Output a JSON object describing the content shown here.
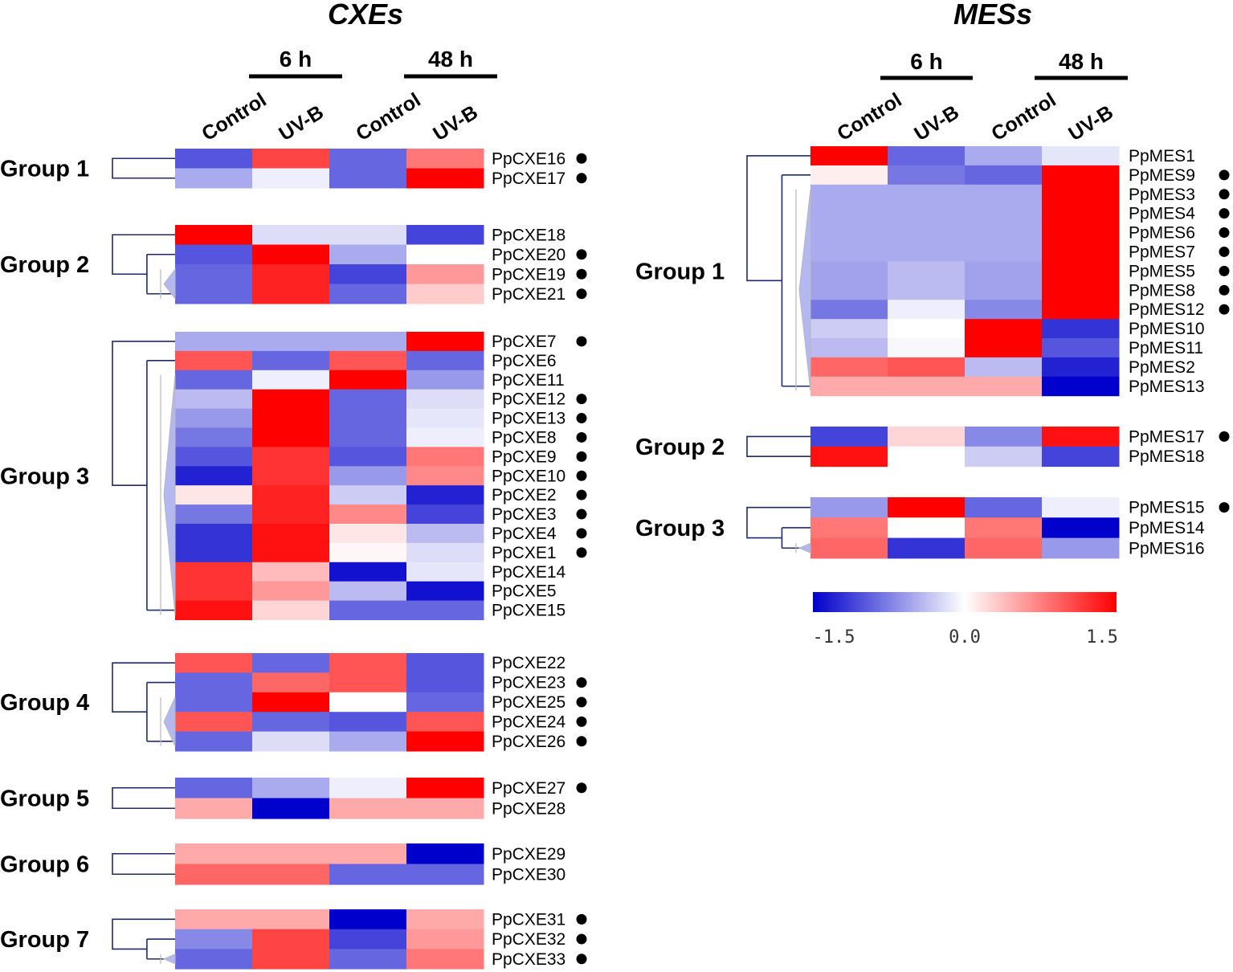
{
  "chart_data": [
    {
      "type": "heatmap",
      "title": "CXEs",
      "time_points": [
        "6 h",
        "48 h"
      ],
      "columns": [
        "Control",
        "UV-B",
        "Control",
        "UV-B"
      ],
      "color_scale": {
        "min": -1.5,
        "mid": 0.0,
        "max": 1.5,
        "low_color": "#0000cc",
        "mid_color": "#ffffff",
        "high_color": "#ff0000"
      },
      "groups": [
        {
          "name": "Group 1",
          "rows": [
            {
              "gene": "PpCXE16",
              "values": [
                -1.0,
                1.1,
                -0.9,
                0.8
              ],
              "marked": true
            },
            {
              "gene": "PpCXE17",
              "values": [
                -0.5,
                -0.1,
                -0.9,
                1.5
              ],
              "marked": true
            }
          ]
        },
        {
          "name": "Group 2",
          "rows": [
            {
              "gene": "PpCXE18",
              "values": [
                1.5,
                -0.2,
                -0.2,
                -1.1
              ],
              "marked": false
            },
            {
              "gene": "PpCXE20",
              "values": [
                -1.0,
                1.5,
                -0.5,
                0.0
              ],
              "marked": true
            },
            {
              "gene": "PpCXE19",
              "values": [
                -0.9,
                1.3,
                -1.1,
                0.6
              ],
              "marked": true
            },
            {
              "gene": "PpCXE21",
              "values": [
                -0.9,
                1.3,
                -0.9,
                0.3
              ],
              "marked": true
            }
          ]
        },
        {
          "name": "Group 3",
          "rows": [
            {
              "gene": "PpCXE7",
              "values": [
                -0.5,
                -0.5,
                -0.5,
                1.5
              ],
              "marked": true
            },
            {
              "gene": "PpCXE6",
              "values": [
                1.0,
                -0.9,
                1.0,
                -0.9
              ],
              "marked": false
            },
            {
              "gene": "PpCXE11",
              "values": [
                -0.9,
                -0.1,
                1.5,
                -0.6
              ],
              "marked": false
            },
            {
              "gene": "PpCXE12",
              "values": [
                -0.4,
                1.5,
                -0.9,
                -0.2
              ],
              "marked": true
            },
            {
              "gene": "PpCXE13",
              "values": [
                -0.6,
                1.5,
                -0.9,
                -0.15
              ],
              "marked": true
            },
            {
              "gene": "PpCXE8",
              "values": [
                -0.8,
                1.5,
                -0.9,
                -0.1
              ],
              "marked": true
            },
            {
              "gene": "PpCXE9",
              "values": [
                -1.0,
                1.2,
                -1.0,
                0.8
              ],
              "marked": true
            },
            {
              "gene": "PpCXE10",
              "values": [
                -1.3,
                1.2,
                -0.6,
                0.7
              ],
              "marked": true
            },
            {
              "gene": "PpCXE2",
              "values": [
                0.15,
                1.3,
                -0.3,
                -1.3
              ],
              "marked": true
            },
            {
              "gene": "PpCXE3",
              "values": [
                -0.8,
                1.3,
                0.7,
                -1.1
              ],
              "marked": true
            },
            {
              "gene": "PpCXE4",
              "values": [
                -1.2,
                1.4,
                0.15,
                -0.4
              ],
              "marked": true
            },
            {
              "gene": "PpCXE1",
              "values": [
                -1.2,
                1.4,
                0.05,
                -0.2
              ],
              "marked": true
            },
            {
              "gene": "PpCXE14",
              "values": [
                1.2,
                0.4,
                -1.4,
                -0.15
              ],
              "marked": false
            },
            {
              "gene": "PpCXE5",
              "values": [
                1.2,
                0.6,
                -0.4,
                -1.4
              ],
              "marked": false
            },
            {
              "gene": "PpCXE15",
              "values": [
                1.4,
                0.25,
                -0.9,
                -0.9
              ],
              "marked": false
            }
          ]
        },
        {
          "name": "Group 4",
          "rows": [
            {
              "gene": "PpCXE22",
              "values": [
                1.0,
                -0.9,
                1.0,
                -1.0
              ],
              "marked": false
            },
            {
              "gene": "PpCXE23",
              "values": [
                -0.9,
                0.9,
                1.0,
                -1.0
              ],
              "marked": true
            },
            {
              "gene": "PpCXE25",
              "values": [
                -0.9,
                1.5,
                0.0,
                -0.9
              ],
              "marked": true
            },
            {
              "gene": "PpCXE24",
              "values": [
                1.0,
                -0.9,
                -1.0,
                1.0
              ],
              "marked": true
            },
            {
              "gene": "PpCXE26",
              "values": [
                -0.9,
                -0.2,
                -0.5,
                1.5
              ],
              "marked": true
            }
          ]
        },
        {
          "name": "Group 5",
          "rows": [
            {
              "gene": "PpCXE27",
              "values": [
                -0.9,
                -0.5,
                -0.1,
                1.5
              ],
              "marked": true
            },
            {
              "gene": "PpCXE28",
              "values": [
                0.5,
                -1.5,
                0.5,
                0.5
              ],
              "marked": false
            }
          ]
        },
        {
          "name": "Group 6",
          "rows": [
            {
              "gene": "PpCXE29",
              "values": [
                0.5,
                0.5,
                0.5,
                -1.5
              ],
              "marked": false
            },
            {
              "gene": "PpCXE30",
              "values": [
                0.9,
                0.9,
                -0.9,
                -0.9
              ],
              "marked": false
            }
          ]
        },
        {
          "name": "Group 7",
          "rows": [
            {
              "gene": "PpCXE31",
              "values": [
                0.5,
                0.5,
                -1.5,
                0.5
              ],
              "marked": true
            },
            {
              "gene": "PpCXE32",
              "values": [
                -0.7,
                1.1,
                -1.1,
                0.6
              ],
              "marked": true
            },
            {
              "gene": "PpCXE33",
              "values": [
                -0.9,
                1.1,
                -0.9,
                0.8
              ],
              "marked": true
            }
          ]
        }
      ]
    },
    {
      "type": "heatmap",
      "title": "MESs",
      "time_points": [
        "6 h",
        "48 h"
      ],
      "columns": [
        "Control",
        "UV-B",
        "Control",
        "UV-B"
      ],
      "color_scale": {
        "min": -1.5,
        "mid": 0.0,
        "max": 1.5,
        "low_color": "#0000cc",
        "mid_color": "#ffffff",
        "high_color": "#ff0000"
      },
      "colorbar_ticks": [
        "-1.5",
        "0.0",
        "1.5"
      ],
      "groups": [
        {
          "name": "Group 1",
          "rows": [
            {
              "gene": "PpMES1",
              "values": [
                1.5,
                -0.9,
                -0.5,
                -0.15
              ],
              "marked": false
            },
            {
              "gene": "PpMES9",
              "values": [
                0.1,
                -0.8,
                -0.9,
                1.5
              ],
              "marked": true
            },
            {
              "gene": "PpMES3",
              "values": [
                -0.5,
                -0.5,
                -0.5,
                1.5
              ],
              "marked": true
            },
            {
              "gene": "PpMES4",
              "values": [
                -0.5,
                -0.5,
                -0.5,
                1.5
              ],
              "marked": true
            },
            {
              "gene": "PpMES6",
              "values": [
                -0.5,
                -0.5,
                -0.5,
                1.5
              ],
              "marked": true
            },
            {
              "gene": "PpMES7",
              "values": [
                -0.5,
                -0.5,
                -0.5,
                1.5
              ],
              "marked": true
            },
            {
              "gene": "PpMES5",
              "values": [
                -0.55,
                -0.4,
                -0.55,
                1.5
              ],
              "marked": true
            },
            {
              "gene": "PpMES8",
              "values": [
                -0.55,
                -0.4,
                -0.55,
                1.5
              ],
              "marked": true
            },
            {
              "gene": "PpMES12",
              "values": [
                -0.8,
                -0.1,
                -0.7,
                1.5
              ],
              "marked": true
            },
            {
              "gene": "PpMES10",
              "values": [
                -0.3,
                0.0,
                1.5,
                -1.2
              ],
              "marked": false
            },
            {
              "gene": "PpMES11",
              "values": [
                -0.4,
                -0.05,
                1.5,
                -1.0
              ],
              "marked": false
            },
            {
              "gene": "PpMES2",
              "values": [
                0.9,
                1.0,
                -0.4,
                -1.3
              ],
              "marked": false
            },
            {
              "gene": "PpMES13",
              "values": [
                0.5,
                0.5,
                0.5,
                -1.5
              ],
              "marked": false
            }
          ]
        },
        {
          "name": "Group 2",
          "rows": [
            {
              "gene": "PpMES17",
              "values": [
                -1.1,
                0.25,
                -0.7,
                1.4
              ],
              "marked": true
            },
            {
              "gene": "PpMES18",
              "values": [
                1.4,
                0.0,
                -0.3,
                -1.1
              ],
              "marked": false
            }
          ]
        },
        {
          "name": "Group 3",
          "rows": [
            {
              "gene": "PpMES15",
              "values": [
                -0.6,
                1.5,
                -0.9,
                -0.1
              ],
              "marked": true
            },
            {
              "gene": "PpMES14",
              "values": [
                0.8,
                0.0,
                0.8,
                -1.5
              ],
              "marked": false
            },
            {
              "gene": "PpMES16",
              "values": [
                0.9,
                -1.2,
                0.9,
                -0.6
              ],
              "marked": false
            }
          ]
        }
      ]
    }
  ]
}
